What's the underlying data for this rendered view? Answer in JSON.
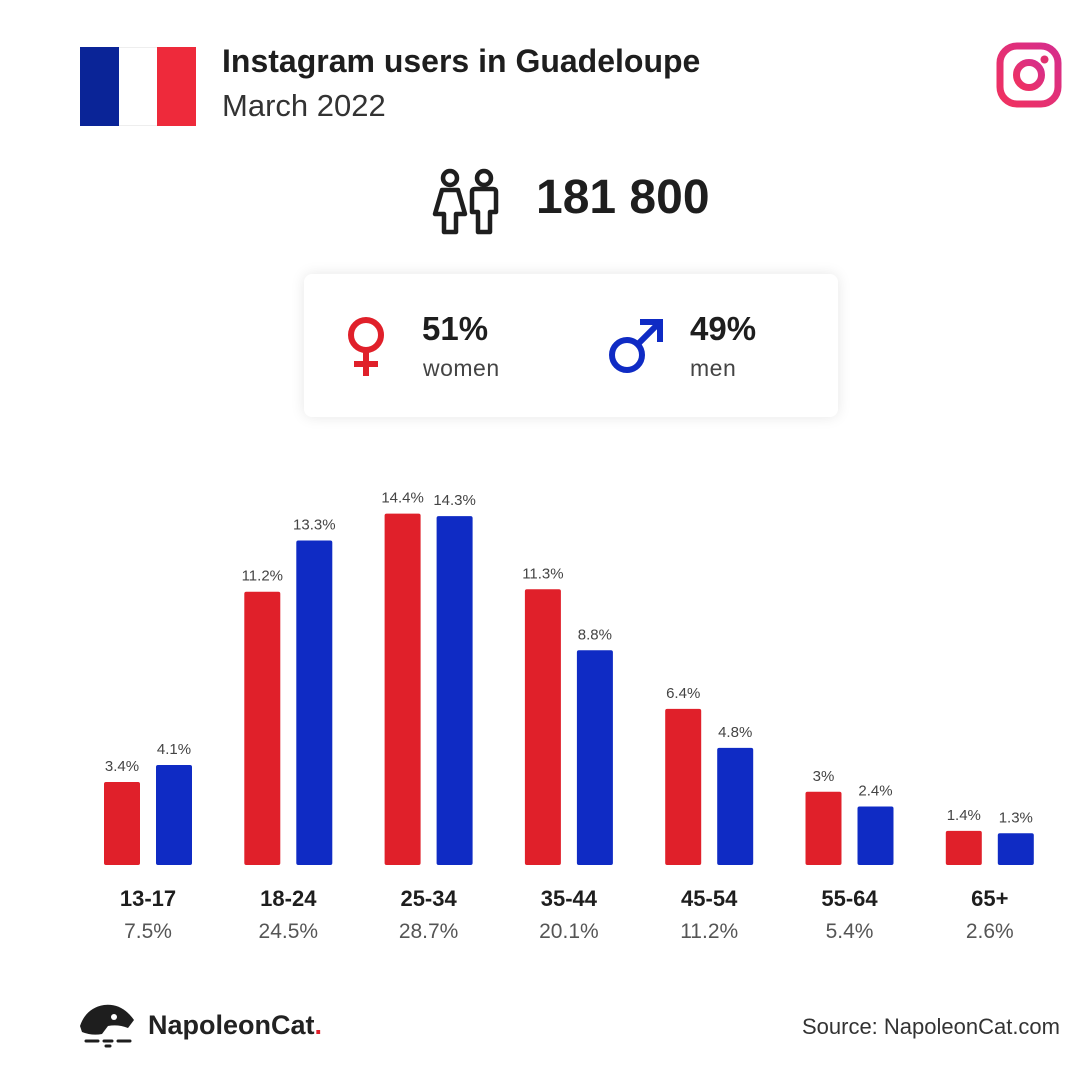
{
  "header": {
    "title": "Instagram users in Guadeloupe",
    "subtitle": "March 2022",
    "flag_colors": [
      "#0a2497",
      "#ffffff",
      "#ee2a3b"
    ],
    "instagram_icon": "instagram-icon"
  },
  "total": {
    "icon": "people-icon",
    "value": "181 800"
  },
  "gender": {
    "women": {
      "icon": "female-symbol-icon",
      "pct": "51%",
      "label": "women",
      "color": "#e0202a"
    },
    "men": {
      "icon": "male-symbol-icon",
      "pct": "49%",
      "label": "men",
      "color": "#0f2bc4"
    }
  },
  "chart_data": {
    "type": "bar",
    "categories": [
      "13-17",
      "18-24",
      "25-34",
      "35-44",
      "45-54",
      "55-64",
      "65+"
    ],
    "category_totals": [
      "7.5%",
      "24.5%",
      "28.7%",
      "20.1%",
      "11.2%",
      "5.4%",
      "2.6%"
    ],
    "series": [
      {
        "values": [
          3.4,
          11.2,
          14.4,
          11.3,
          6.4,
          3.0,
          1.4
        ],
        "labels": [
          "3.4%",
          "11.2%",
          "14.4%",
          "11.3%",
          "6.4%",
          "3%",
          "1.4%"
        ],
        "color": "#e0202a"
      },
      {
        "values": [
          4.1,
          13.3,
          14.3,
          8.8,
          4.8,
          2.4,
          1.3
        ],
        "labels": [
          "4.1%",
          "13.3%",
          "14.3%",
          "8.8%",
          "4.8%",
          "2.4%",
          "1.3%"
        ],
        "color": "#0f2bc4"
      }
    ],
    "title": "",
    "xlabel": "",
    "ylabel": "",
    "ylim": [
      0,
      15
    ],
    "grid": false,
    "legend": "none"
  },
  "footer": {
    "brand_name": "NapoleonCat",
    "brand_dot": ".",
    "logo_icon": "napoleoncat-logo-icon",
    "source": "Source: NapoleonCat.com"
  }
}
